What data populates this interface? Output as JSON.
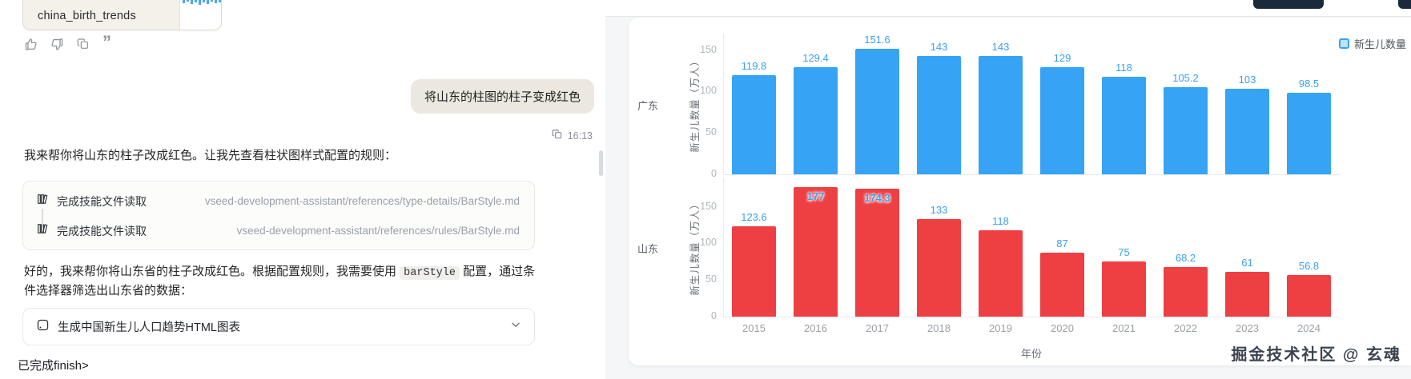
{
  "chat": {
    "attachment": {
      "filename": "china_birth_trends"
    },
    "user_message": {
      "text": "将山东的柱图的柱子变成红色",
      "time": "16:13"
    },
    "assistant_intro": "我来帮你将山东的柱子改成红色。让我先查看柱状图样式配置的规则：",
    "skill_reads": [
      {
        "label": "完成技能文件读取",
        "path": "vseed-development-assistant/references/type-details/BarStyle.md"
      },
      {
        "label": "完成技能文件读取",
        "path": "vseed-development-assistant/references/rules/BarStyle.md"
      }
    ],
    "assistant_followup": {
      "before_code": "好的，我来帮你将山东省的柱子改成红色。根据配置规则，我需要使用 ",
      "code": "barStyle",
      "after_code": " 配置，通过条件选择器筛选出山东省的数据："
    },
    "collapse_card": {
      "label": "生成中国新生儿人口趋势HTML图表"
    },
    "footer_text": "已完成finish>"
  },
  "chart_panel": {
    "legend_label": "新生儿数量",
    "watermark": "掘金技术社区 @ 玄魂"
  },
  "chart_data": {
    "type": "bar",
    "categories": [
      "2015",
      "2016",
      "2017",
      "2018",
      "2019",
      "2020",
      "2021",
      "2022",
      "2023",
      "2024"
    ],
    "series": [
      {
        "name": "广东",
        "color": "#36a3f5",
        "values": [
          119.8,
          129.4,
          151.6,
          143,
          143,
          129,
          118,
          105.2,
          103,
          98.5
        ]
      },
      {
        "name": "山东",
        "color": "#ee3f43",
        "values": [
          123.6,
          177,
          174.3,
          133,
          118,
          87,
          75,
          68.2,
          61,
          56.8
        ]
      }
    ],
    "title": "",
    "xlabel": "年份",
    "ylabel": "新生儿数量（万人）",
    "yticks": [
      0,
      50,
      100,
      150
    ],
    "ylim": [
      0,
      185
    ],
    "legend": "新生儿数量",
    "legend_position": "top-right",
    "grid": false,
    "value_labels": true
  }
}
